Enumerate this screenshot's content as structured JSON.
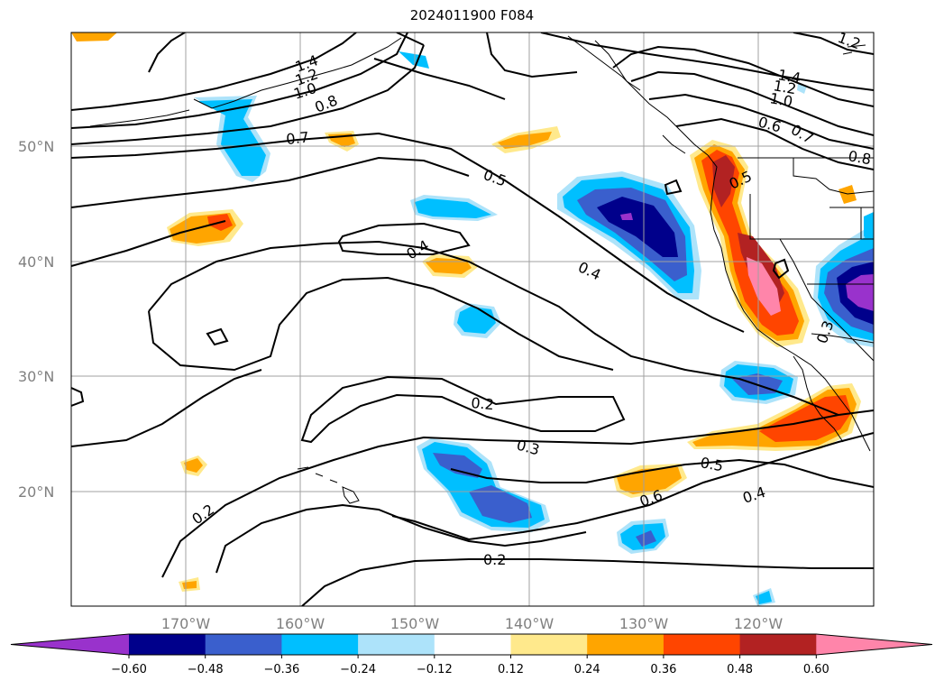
{
  "title": "2024011900 F084",
  "map": {
    "lat_labels": [
      "50°N",
      "40°N",
      "30°N",
      "20°N"
    ],
    "lon_labels": [
      "170°W",
      "160°W",
      "150°W",
      "140°W",
      "130°W",
      "120°W"
    ],
    "gridlines": true
  },
  "contour_labels": [
    "1.4",
    "1.2",
    "1.0",
    "0.8",
    "0.7",
    "0.5",
    "0.4",
    "0.4",
    "0.2",
    "0.3",
    "0.5",
    "0.6",
    "0.4",
    "0.2",
    "0.2",
    "1.4",
    "1.2",
    "1.0",
    "0.6",
    "0.7",
    "0.8",
    "0.5",
    "0.3",
    "1.2"
  ],
  "colorbar": {
    "ticks": [
      "−0.60",
      "−0.48",
      "−0.36",
      "−0.24",
      "−0.12",
      "0.12",
      "0.24",
      "0.36",
      "0.48",
      "0.60"
    ],
    "colors": [
      "#9932CC",
      "#00008B",
      "#3A5FCD",
      "#00BFFF",
      "#ADE3FA",
      "#FFFFFF",
      "#FFE98C",
      "#FFA500",
      "#FF4500",
      "#B22222",
      "#FF85AA"
    ]
  }
}
